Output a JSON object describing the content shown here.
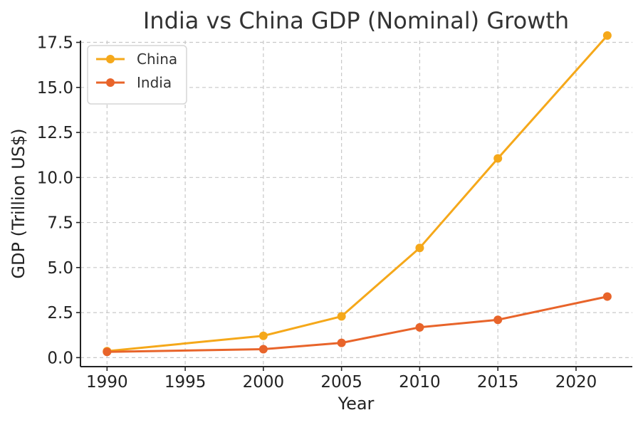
{
  "chart_data": {
    "type": "line",
    "title": "India vs China GDP (Nominal) Growth",
    "xlabel": "Year",
    "ylabel": "GDP (Trillion US$)",
    "x": [
      1990,
      2000,
      2005,
      2010,
      2015,
      2022
    ],
    "series": [
      {
        "name": "China",
        "color": "#f5a81a",
        "values": [
          0.36,
          1.21,
          2.29,
          6.09,
          11.06,
          17.88
        ]
      },
      {
        "name": "India",
        "color": "#e8642a",
        "values": [
          0.32,
          0.47,
          0.82,
          1.68,
          2.1,
          3.39
        ]
      }
    ],
    "xlim": [
      1988.3,
      2023.6
    ],
    "ylim": [
      -0.5,
      17.6
    ],
    "xticks": [
      1990,
      1995,
      2000,
      2005,
      2010,
      2015,
      2020
    ],
    "yticks": [
      0.0,
      2.5,
      5.0,
      7.5,
      10.0,
      12.5,
      15.0,
      17.5
    ],
    "ytick_labels": [
      "0.0",
      "2.5",
      "5.0",
      "7.5",
      "10.0",
      "12.5",
      "15.0",
      "17.5"
    ],
    "grid": true,
    "legend_position": "top-left"
  }
}
